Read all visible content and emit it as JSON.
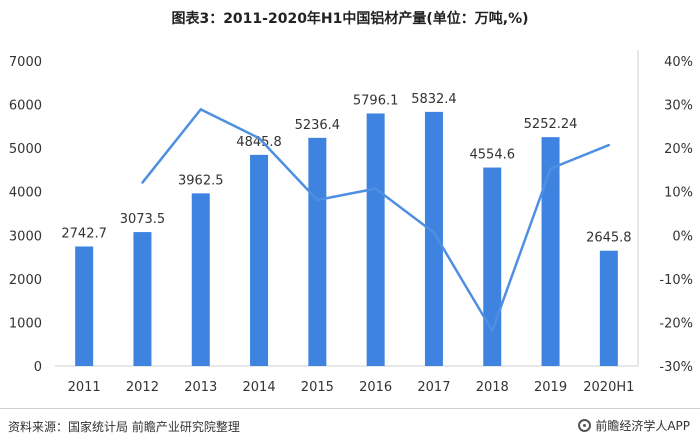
{
  "chart_data": {
    "type": "bar",
    "title": "图表3：2011-2020年H1中国铝材产量(单位：万吨,%)",
    "categories": [
      "2011",
      "2012",
      "2013",
      "2014",
      "2015",
      "2016",
      "2017",
      "2018",
      "2019",
      "2020H1"
    ],
    "series": [
      {
        "type": "bar",
        "axis": "left",
        "color": "#3f83e0",
        "values": [
          2742.7,
          3073.5,
          3962.5,
          4845.8,
          5236.4,
          5796.1,
          5832.4,
          4554.6,
          5252.24,
          2645.8
        ],
        "labels": [
          "2742.7",
          "3073.5",
          "3962.5",
          "4845.8",
          "5236.4",
          "5796.1",
          "5832.4",
          "4554.6",
          "5252.24",
          "2645.8"
        ]
      },
      {
        "type": "line",
        "axis": "right",
        "color": "#4f8fe2",
        "values": [
          null,
          12.1,
          28.9,
          22.3,
          8.1,
          10.7,
          0.6,
          -21.9,
          15.3,
          20.7
        ]
      }
    ],
    "y_left": {
      "min": 0,
      "max": 7000,
      "step": 1000,
      "ticks": [
        "0",
        "1000",
        "2000",
        "3000",
        "4000",
        "5000",
        "6000",
        "7000"
      ]
    },
    "y_right": {
      "min": -30,
      "max": 40,
      "step": 10,
      "ticks": [
        "-30%",
        "-20%",
        "-10%",
        "0%",
        "10%",
        "20%",
        "30%",
        "40%"
      ]
    },
    "grid": false,
    "legend": "none"
  },
  "footer": {
    "source": "资料来源：国家统计局 前瞻产业研究院整理",
    "brand": "前瞻经济学人APP"
  },
  "colors": {
    "bar": "#3f83e0",
    "line": "#4f8fe2",
    "axis": "#cfcfcf",
    "text": "#333333"
  }
}
